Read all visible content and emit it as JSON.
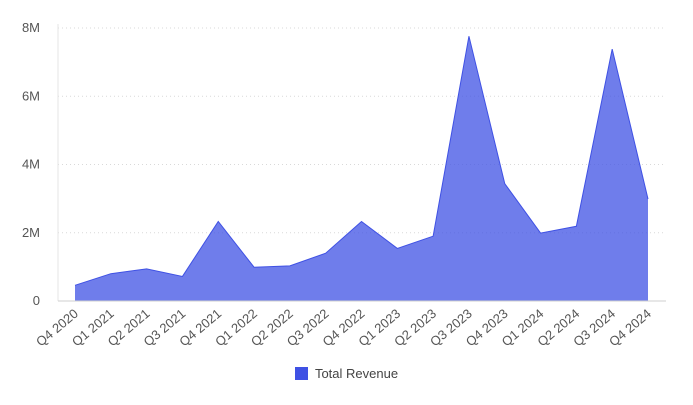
{
  "chart_data": {
    "type": "area",
    "categories": [
      "Q4 2020",
      "Q1 2021",
      "Q2 2021",
      "Q3 2021",
      "Q4 2021",
      "Q1 2022",
      "Q2 2022",
      "Q3 2022",
      "Q4 2022",
      "Q1 2023",
      "Q2 2023",
      "Q3 2023",
      "Q4 2023",
      "Q1 2024",
      "Q2 2024",
      "Q3 2024",
      "Q4 2024"
    ],
    "series": [
      {
        "name": "Total Revenue",
        "color": "#3f51e4",
        "values": [
          460000,
          800000,
          940000,
          720000,
          2330000,
          990000,
          1030000,
          1400000,
          2330000,
          1540000,
          1900000,
          7760000,
          3440000,
          1990000,
          2190000,
          7380000,
          2990000
        ]
      }
    ],
    "yticks": [
      "0",
      "2M",
      "4M",
      "6M",
      "8M"
    ],
    "ytick_values": [
      0,
      2000000,
      4000000,
      6000000,
      8000000
    ],
    "ylim": [
      0,
      8000000
    ],
    "grid": "horizontal dotted",
    "legend": "bottom-center"
  }
}
